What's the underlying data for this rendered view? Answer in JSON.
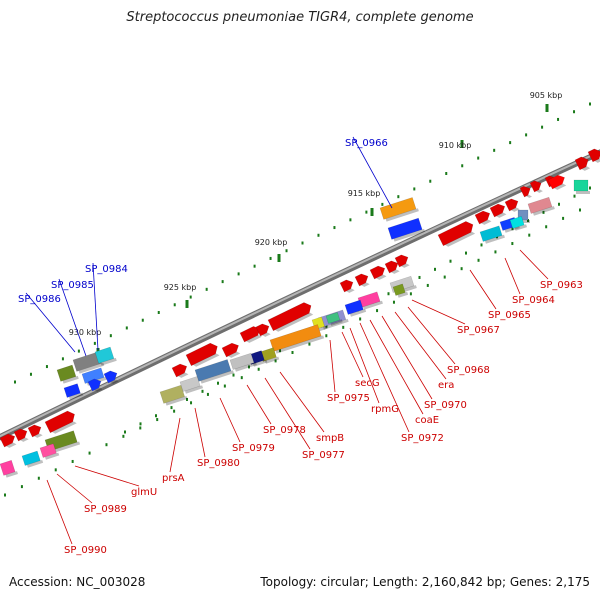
{
  "title": "Streptococcus pneumoniae TIGR4, complete genome",
  "footer": {
    "accession": "Accession: NC_003028",
    "summary": "Topology: circular; Length: 2,160,842 bp; Genes: 2,175"
  },
  "colors": {
    "backbone": "#8a8a8a",
    "tick": "#1a7a1a",
    "label_red": "#cc0000",
    "label_blue": "#0000cc"
  },
  "scale_labels": [
    "905 kbp",
    "910 kbp",
    "915 kbp",
    "920 kbp",
    "925 kbp",
    "930 kbp"
  ],
  "gene_labels": [
    {
      "id": "SP_0963",
      "color": "red"
    },
    {
      "id": "SP_0964",
      "color": "red"
    },
    {
      "id": "SP_0965",
      "color": "red"
    },
    {
      "id": "SP_0966",
      "color": "blue"
    },
    {
      "id": "SP_0967",
      "color": "red"
    },
    {
      "id": "SP_0968",
      "color": "red"
    },
    {
      "id": "era",
      "color": "red"
    },
    {
      "id": "SP_0970",
      "color": "red"
    },
    {
      "id": "coaE",
      "color": "red"
    },
    {
      "id": "SP_0972",
      "color": "red"
    },
    {
      "id": "rpmG",
      "color": "red"
    },
    {
      "id": "secG",
      "color": "red"
    },
    {
      "id": "SP_0975",
      "color": "red"
    },
    {
      "id": "smpB",
      "color": "red"
    },
    {
      "id": "SP_0977",
      "color": "red"
    },
    {
      "id": "SP_0978",
      "color": "red"
    },
    {
      "id": "SP_0979",
      "color": "red"
    },
    {
      "id": "SP_0980",
      "color": "red"
    },
    {
      "id": "prsA",
      "color": "red"
    },
    {
      "id": "glmU",
      "color": "red"
    },
    {
      "id": "SP_0984",
      "color": "blue"
    },
    {
      "id": "SP_0985",
      "color": "blue"
    },
    {
      "id": "SP_0986",
      "color": "blue"
    },
    {
      "id": "SP_0989",
      "color": "red"
    },
    {
      "id": "SP_0990",
      "color": "red"
    }
  ]
}
